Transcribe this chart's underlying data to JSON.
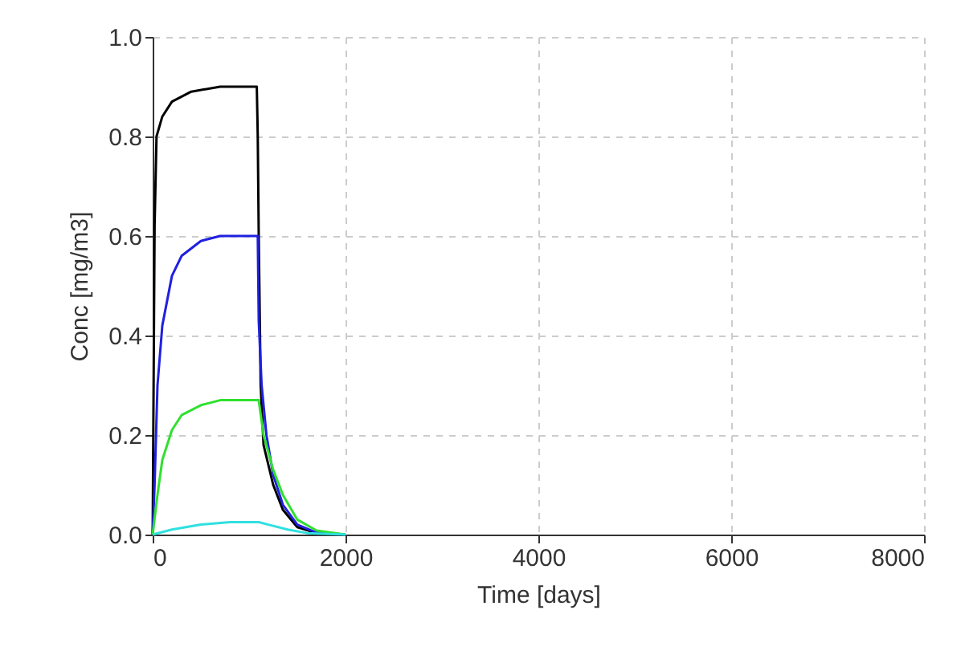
{
  "chart_data": {
    "type": "line",
    "xlabel": "Time [days]",
    "ylabel": "Conc [mg/m3]",
    "xlim": [
      0,
      8000
    ],
    "xticks": [
      0,
      2000,
      4000,
      6000,
      8000
    ],
    "ylim": [
      0,
      1
    ],
    "yticks": [
      {
        "value": 0,
        "label": "0.0"
      },
      {
        "value": 0.2,
        "label": "0.2"
      },
      {
        "value": 0.4,
        "label": "0.4"
      },
      {
        "value": 0.6,
        "label": "0.6"
      },
      {
        "value": 0.8,
        "label": "0.8"
      },
      {
        "value": 1,
        "label": "1.0"
      }
    ],
    "grid": true,
    "line_style": "solid",
    "marker": "none",
    "series": [
      {
        "color": "#000000",
        "x": [
          0,
          20,
          40,
          100,
          200,
          400,
          700,
          1080,
          1090,
          1100,
          1120,
          1150,
          1250,
          1350,
          1500,
          1700,
          2000
        ],
        "values": [
          0,
          0.62,
          0.8,
          0.84,
          0.87,
          0.89,
          0.9,
          0.9,
          0.8,
          0.6,
          0.3,
          0.18,
          0.1,
          0.05,
          0.015,
          0.003,
          0
        ]
      },
      {
        "color": "#2020e0",
        "x": [
          0,
          20,
          50,
          100,
          200,
          300,
          500,
          700,
          1090,
          1100,
          1130,
          1180,
          1250,
          1350,
          1500,
          1700,
          2000
        ],
        "values": [
          0,
          0.1,
          0.3,
          0.42,
          0.52,
          0.56,
          0.59,
          0.6,
          0.6,
          0.43,
          0.3,
          0.2,
          0.12,
          0.06,
          0.02,
          0.004,
          0
        ]
      },
      {
        "color": "#30e030",
        "x": [
          0,
          50,
          100,
          200,
          300,
          500,
          700,
          1100,
          1150,
          1250,
          1350,
          1500,
          1700,
          2000
        ],
        "values": [
          0,
          0.08,
          0.15,
          0.21,
          0.24,
          0.26,
          0.27,
          0.27,
          0.2,
          0.13,
          0.08,
          0.03,
          0.008,
          0
        ]
      },
      {
        "color": "#30e0e0",
        "x": [
          0,
          200,
          500,
          800,
          1100,
          1200,
          1400,
          1600,
          2000
        ],
        "values": [
          0,
          0.01,
          0.02,
          0.025,
          0.025,
          0.02,
          0.01,
          0.003,
          0
        ]
      }
    ]
  }
}
